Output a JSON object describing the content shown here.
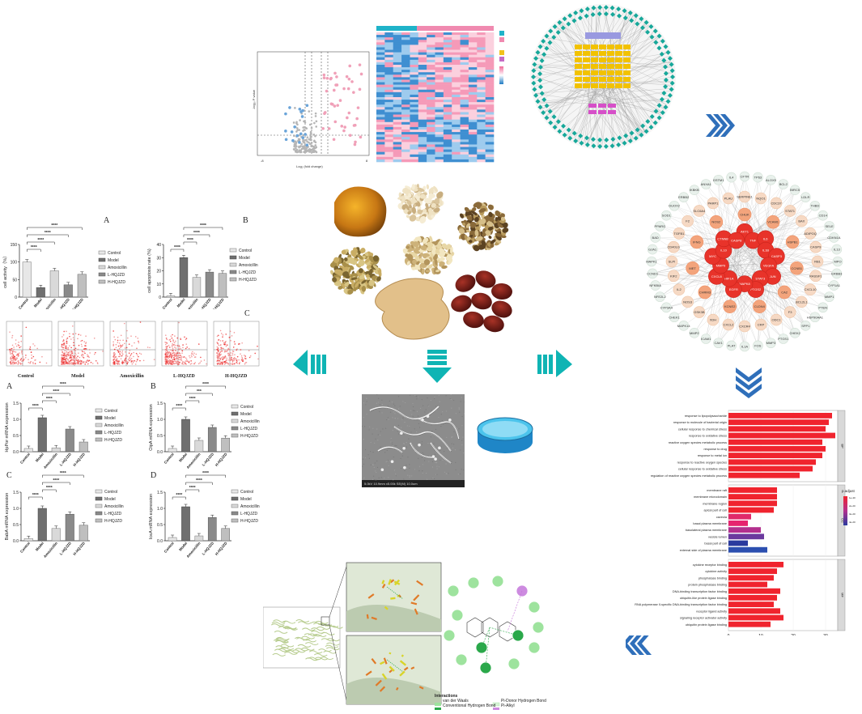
{
  "barcharts_top": {
    "panel_a_letter": "A",
    "panel_b_letter": "B",
    "panel_c_letter": "C",
    "a_ylabel": "cell activity（%）",
    "b_ylabel": "cell apoptosis rate (%)",
    "categories": [
      "Control",
      "Model",
      "Amoxicillin",
      "L-HQJZD",
      "H-HQJZD"
    ],
    "sig": "****",
    "sig3": "***",
    "a_values": [
      100,
      27,
      75,
      35,
      65
    ],
    "b_values": [
      1,
      30,
      15,
      19,
      18
    ],
    "a_yticks": [
      "0",
      "50",
      "100",
      "150"
    ],
    "b_yticks": [
      "0",
      "10",
      "20",
      "30",
      "40"
    ]
  },
  "flow": {
    "labels": [
      "Control",
      "Model",
      "Amoxicillin",
      "L-HQJZD",
      "H-HQJZD"
    ]
  },
  "mrna": {
    "a_letter": "A",
    "b_letter": "B",
    "c_letter": "C",
    "d_letter": "D",
    "a_ylabel": "HpPor mRNA expression",
    "b_ylabel": "OipA mRNA expression",
    "c_ylabel": "BabA mRNA expression",
    "d_ylabel": "IceA mRNA expression",
    "a_values": [
      0.1,
      1.05,
      0.12,
      0.7,
      0.3
    ],
    "b_values": [
      0.1,
      1.0,
      0.35,
      0.75,
      0.42
    ],
    "c_values": [
      0.07,
      1.0,
      0.38,
      0.82,
      0.48
    ],
    "d_values": [
      0.1,
      1.05,
      0.15,
      0.72,
      0.38
    ],
    "yticks": [
      "0.0",
      "0.5",
      "1.0",
      "1.5"
    ]
  },
  "volcano": {
    "xlabel": "Log₂ (fold change)",
    "ylabel": "-log₁₀ P value"
  },
  "network_nodes": [
    "CFTR",
    "TP63",
    "ALOX5",
    "BCL2",
    "BIRC5",
    "LDLR",
    "THBD",
    "CD14",
    "SELE",
    "CDKN1A",
    "IL13",
    "MPO",
    "ERBB3",
    "CYP1A1",
    "MMP1",
    "PTEN",
    "HSP90AA1",
    "SPP1",
    "CHEK2",
    "PTGS1",
    "MMP3",
    "FOS",
    "IL1A",
    "PLAT",
    "CAV1",
    "ICAM1",
    "MMP2",
    "MAPK14",
    "CHEK1",
    "CYP3A4",
    "NFE2L2",
    "NFKBIA",
    "CCND1",
    "MAPK1",
    "GJA1",
    "BAD",
    "MMP9",
    "JUN",
    "PPARG",
    "SOD1",
    "DUOX2",
    "ERBB2",
    "PTGS2",
    "IL1B",
    "MYC",
    "IKBKB",
    "ANXA1",
    "GSTM1",
    "IL4",
    "TNF",
    "SERPINE1",
    "NQO1",
    "CDC37",
    "STAT3",
    "IL10",
    "STAT1",
    "BAX",
    "ADIPOQ",
    "CASP8",
    "AKT1",
    "CTNNB1",
    "CASP9",
    "RB1",
    "RASSF1",
    "CXCL10",
    "BCL2L1",
    "CXCL8",
    "IL6",
    "MAPK8",
    "F3",
    "ODC1",
    "CRP",
    "VEGFA",
    "CXCR4",
    "CXCL2",
    "XDH",
    "GSK3B",
    "NOS3",
    "HIF1A",
    "EGFR",
    "IL2",
    "KIF2",
    "SLPI",
    "CD40LG",
    "TGFB1",
    "F2",
    "SLC6A4",
    "PARP1",
    "PLAU",
    "CHUK",
    "VCAM1",
    "HSPB1",
    "CCNB1",
    "CA2",
    "CLDN4",
    "KCNE2",
    "CHRM3",
    "MET",
    "IFNG",
    "NOS2",
    "CASP3"
  ],
  "go": {
    "bp_terms": [
      "response to lipopolysaccharide",
      "response to molecule of bacterial origin",
      "cellular response to chemical stress",
      "response to oxidative stress",
      "reactive oxygen species metabolic process",
      "response to drug",
      "response to metal ion",
      "response to reactive oxygen species",
      "cellular response to oxidative stress",
      "regulation of reactive oxygen species metabolic process"
    ],
    "bp_values": [
      32,
      31,
      30,
      33,
      29,
      30,
      29,
      27,
      26,
      22
    ],
    "cc_terms": [
      "membrane raft",
      "membrane microdomain",
      "membrane region",
      "apical part of cell",
      "caveola",
      "basal plasma membrane",
      "basolateral plasma membrane",
      "vesicle lumen",
      "basal part of cell",
      "external side of plasma membrane"
    ],
    "cc_values": [
      15,
      15,
      15,
      14,
      7,
      6,
      10,
      11,
      6,
      12
    ],
    "mf_terms": [
      "cytokine receptor binding",
      "cytokine activity",
      "phosphatase binding",
      "protein phosphatase binding",
      "DNA-binding transcription factor binding",
      "ubiquitin-like protein ligase binding",
      "RNA polymerase II-specific DNA-binding transcription factor binding",
      "receptor ligand activity",
      "signaling receptor activator activity",
      "ubiquitin protein ligase binding"
    ],
    "mf_values": [
      17,
      15,
      14,
      12,
      16,
      15,
      14,
      16,
      17,
      13
    ],
    "side": [
      "BP",
      "CC",
      "MF"
    ],
    "xticks": [
      "0",
      "10",
      "20",
      "30"
    ],
    "legend_title": "p.adjust",
    "legend_ticks": [
      "1e-40",
      "2e-20",
      "3e-20",
      "4e-20"
    ]
  },
  "sem": {
    "scale_text": "5.0kV 10.9mm x5.00k SE(M) 10.0um"
  },
  "docking": {
    "legend_title": "Interactions",
    "legend_items": [
      "van der Waals",
      "Conventional Hydrogen Bond",
      "Pi-Donor Hydrogen Bond",
      "Pi-Alkyl"
    ]
  },
  "colors": {
    "teal": "#0fb4b4",
    "navy_chevron": "#2f6fba",
    "bar_red": "#f0242e",
    "net_red": "#e8332a",
    "net_peach": "#f6c8a8"
  }
}
